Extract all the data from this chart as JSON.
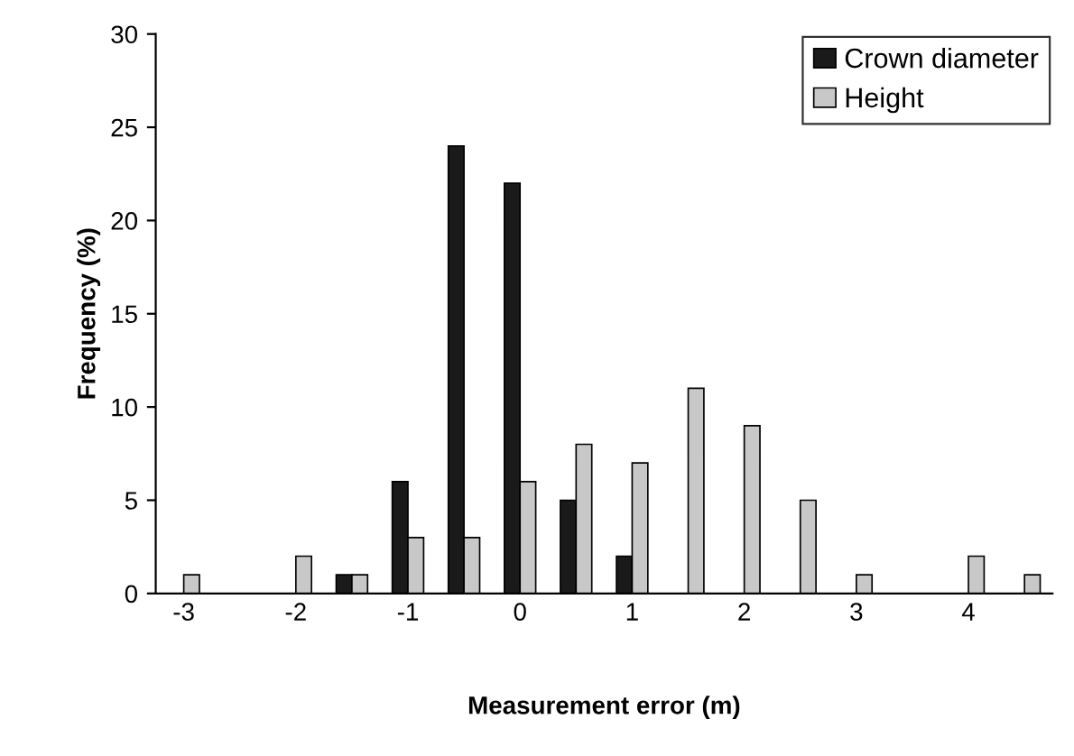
{
  "chart_data": {
    "type": "bar",
    "xlabel": "Measurement error (m)",
    "ylabel": "Frequency (%)",
    "categories": [
      "-3",
      null,
      "-2",
      null,
      "-1",
      null,
      "0",
      null,
      "1",
      null,
      "2",
      null,
      "3",
      null,
      "4",
      null
    ],
    "series": [
      {
        "name": "Crown diameter",
        "color": "#1a1a1a",
        "values": [
          null,
          null,
          null,
          1,
          6,
          24,
          22,
          5,
          2,
          null,
          null,
          null,
          null,
          null,
          null,
          null
        ]
      },
      {
        "name": "Height",
        "color": "#c8c8c8",
        "values": [
          1,
          null,
          2,
          1,
          3,
          3,
          6,
          8,
          7,
          11,
          9,
          5,
          1,
          null,
          2,
          1
        ]
      }
    ],
    "ylim": [
      0,
      30
    ],
    "yticks": [
      0,
      5,
      10,
      15,
      20,
      25,
      30
    ],
    "grid": false,
    "legend": "top right"
  }
}
